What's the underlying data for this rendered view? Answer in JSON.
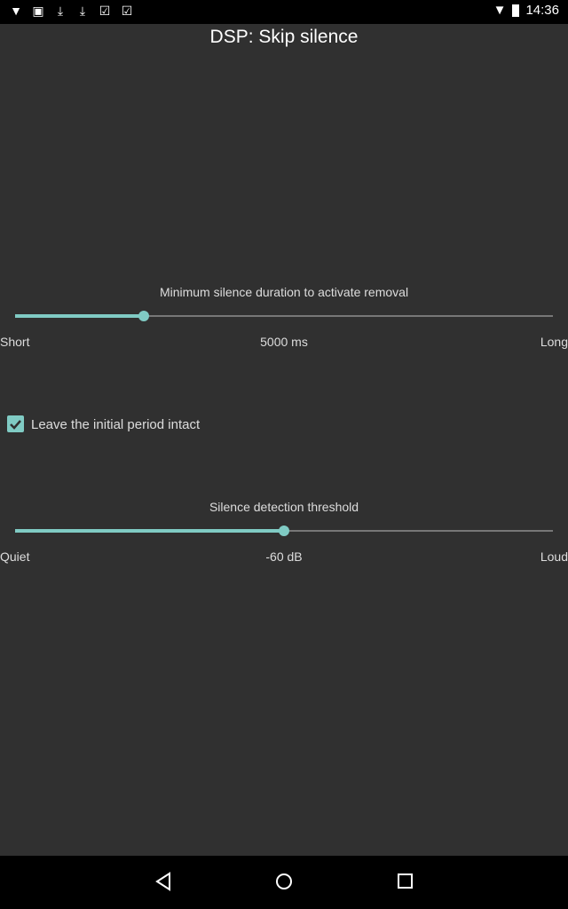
{
  "status_bar": {
    "time": "14:36",
    "icons": [
      "fox-icon",
      "image-icon",
      "download-icon",
      "download-icon",
      "clipboard-check-icon",
      "clipboard-stack-icon"
    ],
    "right_icons": [
      "wifi-icon",
      "battery-icon"
    ]
  },
  "title": "DSP: Skip silence",
  "duration": {
    "label": "Minimum silence duration to activate removal",
    "value": "5000 ms",
    "min_label": "Short",
    "max_label": "Long",
    "level_percent": 24
  },
  "checkbox": {
    "label": "Leave the initial period intact",
    "checked": true
  },
  "threshold": {
    "label": "Silence detection threshold",
    "value": "-60 dB",
    "min_label": "Quiet",
    "max_label": "Loud",
    "level_percent": 50
  },
  "accent": "#80cbc4",
  "nav": [
    "back-icon",
    "home-icon",
    "recents-icon"
  ]
}
